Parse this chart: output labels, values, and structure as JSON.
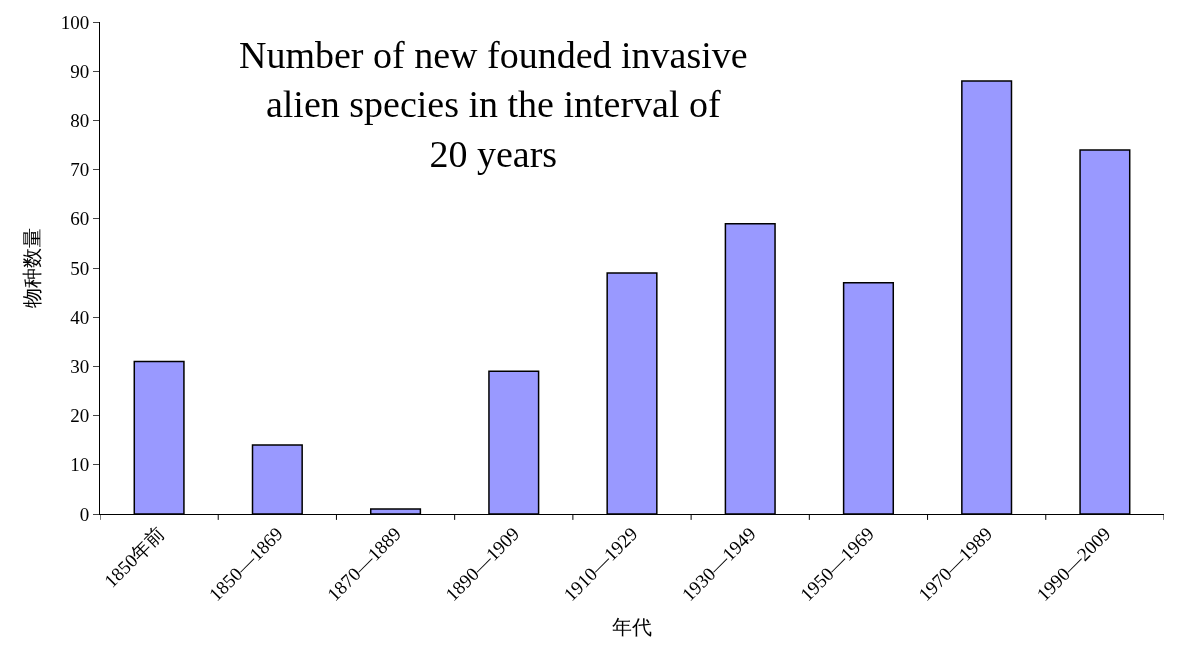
{
  "chart_data": {
    "type": "bar",
    "title": "Number of new founded invasive alien species in the interval of 20 years",
    "xlabel": "年代",
    "ylabel": "物种数量",
    "categories": [
      "1850年前",
      "1850—1869",
      "1870—1889",
      "1890—1909",
      "1910—1929",
      "1930—1949",
      "1950—1969",
      "1970—1989",
      "1990—2009"
    ],
    "values": [
      31,
      14,
      1,
      29,
      49,
      59,
      47,
      88,
      74
    ],
    "color": "#9999ff",
    "ylim": [
      0,
      100
    ],
    "yticks": [
      0,
      10,
      20,
      30,
      40,
      50,
      60,
      70,
      80,
      90,
      100
    ]
  }
}
